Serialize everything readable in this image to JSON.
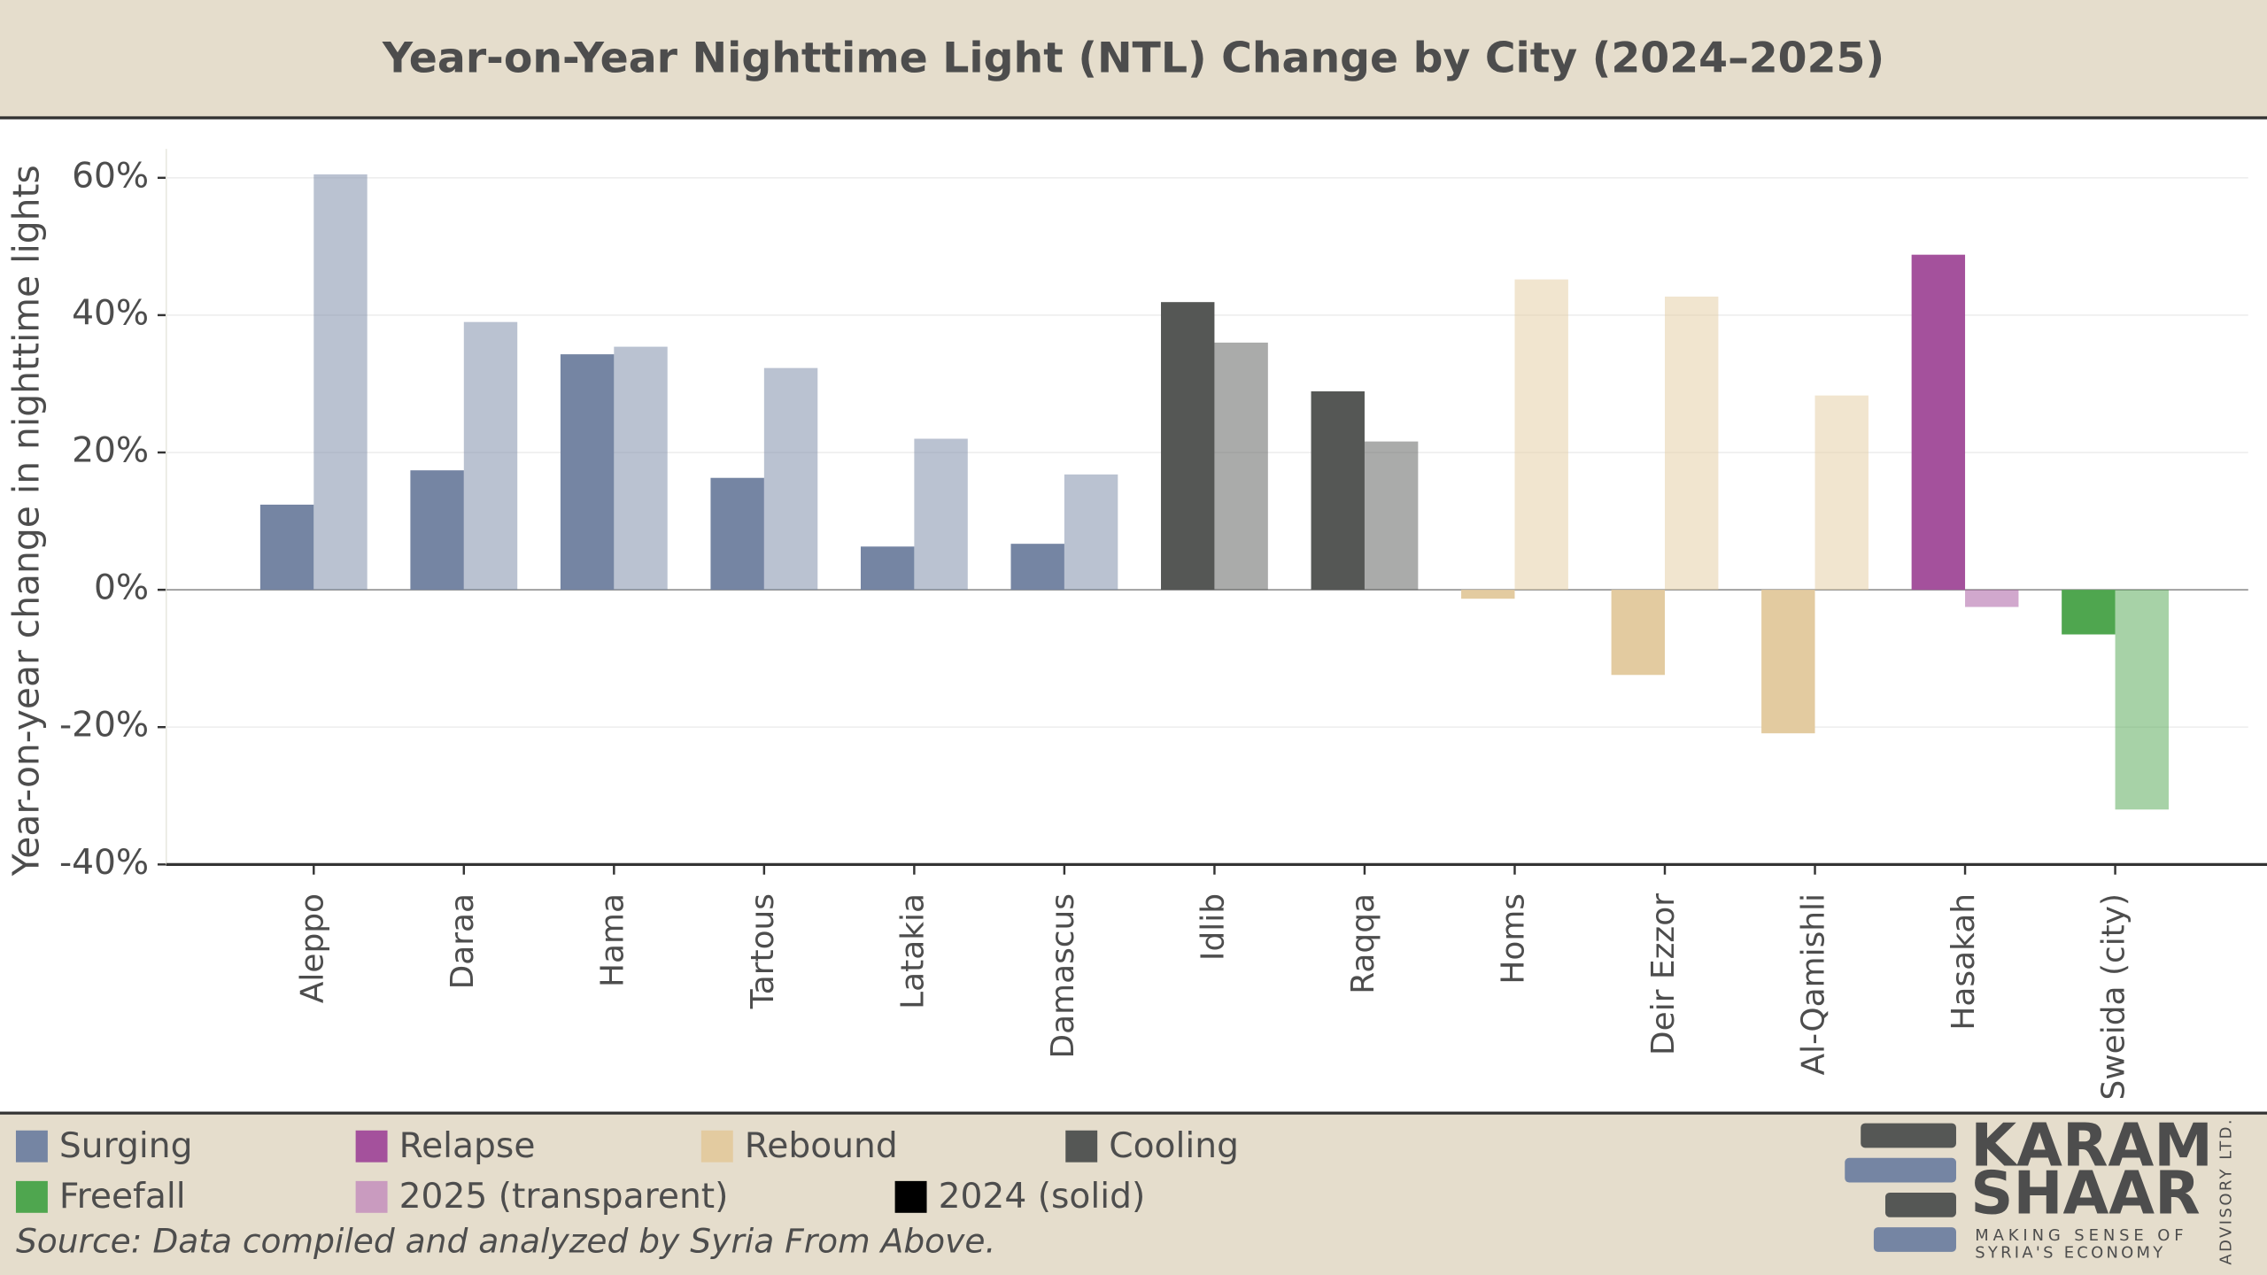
{
  "chart_data": {
    "type": "bar",
    "title": "Year-on-Year Nighttime Light (NTL) Change by City (2024–2025)",
    "ylabel": "Year-on-year change in nighttime lights",
    "categories": [
      "Aleppo",
      "Daraa",
      "Hama",
      "Tartous",
      "Latakia",
      "Damascus",
      "Idlib",
      "Raqqa",
      "Homs",
      "Deir Ezzor",
      "Al-Qamishli",
      "Hasakah",
      "Sweida (city)"
    ],
    "category_colors": [
      "#7585a3",
      "#7585a3",
      "#7585a3",
      "#7585a3",
      "#7585a3",
      "#7585a3",
      "#555755",
      "#555755",
      "#e3cba0",
      "#e3cba0",
      "#e3cba0",
      "#a4519c",
      "#4fa64f"
    ],
    "series": [
      {
        "name": "2024 (solid)",
        "color": "#000000",
        "opacity": 1,
        "values": [
          12.4,
          17.4,
          34.3,
          16.3,
          6.3,
          6.7,
          41.9,
          28.9,
          -1.3,
          -12.4,
          -20.9,
          48.8,
          -6.5
        ]
      },
      {
        "name": "2025 (transparent)",
        "color": "#c99bbf",
        "opacity": 0.5,
        "values": [
          60.5,
          39,
          35.4,
          32.3,
          22,
          16.8,
          36,
          21.6,
          45.2,
          42.7,
          28.3,
          -2.5,
          -32
        ]
      }
    ],
    "groups": [
      {
        "name": "Surging",
        "color": "#7585a3"
      },
      {
        "name": "Relapse",
        "color": "#a4519c"
      },
      {
        "name": "Rebound",
        "color": "#e3cba0"
      },
      {
        "name": "Cooling",
        "color": "#555755"
      },
      {
        "name": "Freefall",
        "color": "#4fa64f"
      }
    ],
    "ylim": [
      -40,
      60
    ],
    "yticks": [
      {
        "value": -40,
        "label": "-40%"
      },
      {
        "value": -20,
        "label": "-20%"
      },
      {
        "value": 0,
        "label": "0%"
      },
      {
        "value": 20,
        "label": "20%"
      },
      {
        "value": 40,
        "label": "40%"
      },
      {
        "value": 60,
        "label": "60%"
      }
    ],
    "grid": true,
    "source": "Source: Data compiled and analyzed by Syria From Above."
  },
  "logo": {
    "line1": "KARAM",
    "line2": "SHAAR",
    "tagline1": "MAKING SENSE OF",
    "tagline2": "SYRIA'S ECONOMY",
    "side": "ADVISORY LTD."
  }
}
